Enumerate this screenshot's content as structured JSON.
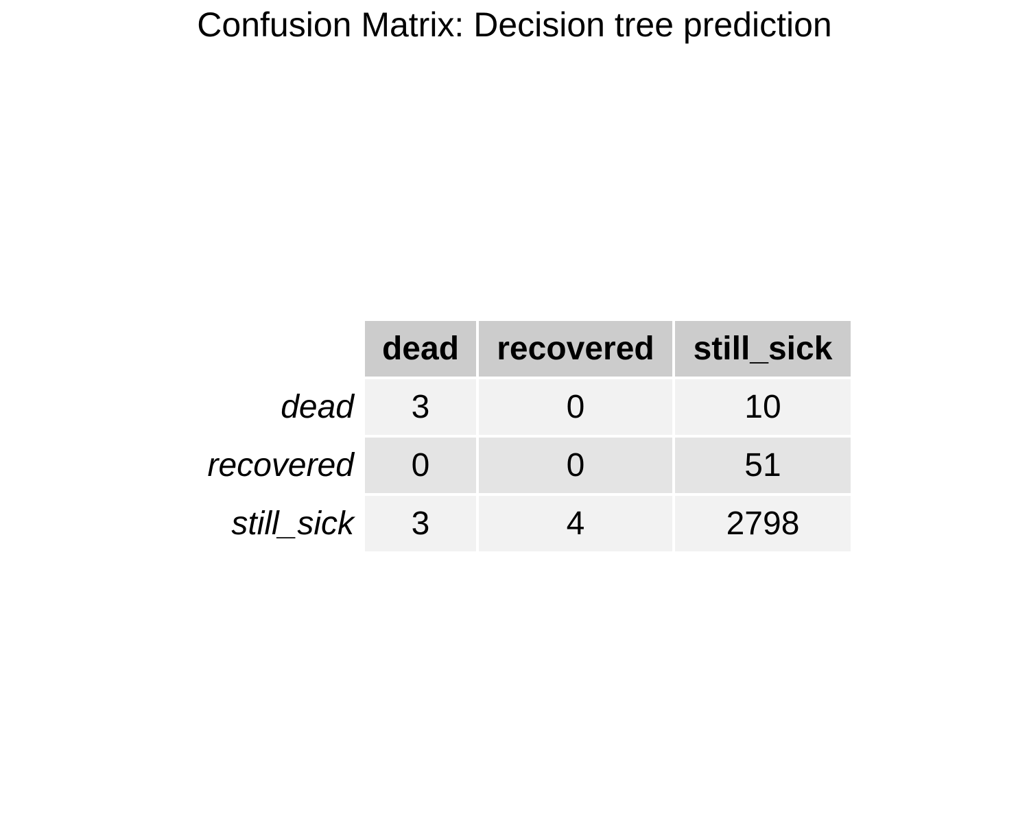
{
  "title": "Confusion Matrix: Decision tree prediction",
  "chart_data": {
    "type": "table",
    "title": "Confusion Matrix: Decision tree prediction",
    "columns": [
      "dead",
      "recovered",
      "still_sick"
    ],
    "rows": [
      {
        "label": "dead",
        "values": [
          3,
          0,
          10
        ]
      },
      {
        "label": "recovered",
        "values": [
          0,
          0,
          51
        ]
      },
      {
        "label": "still_sick",
        "values": [
          3,
          4,
          2798
        ]
      }
    ]
  },
  "colors": {
    "header_bg": "#cccccc",
    "row_light_bg": "#f2f2f2",
    "row_dark_bg": "#e4e4e4",
    "cell_border": "#ffffff",
    "text": "#000000"
  }
}
